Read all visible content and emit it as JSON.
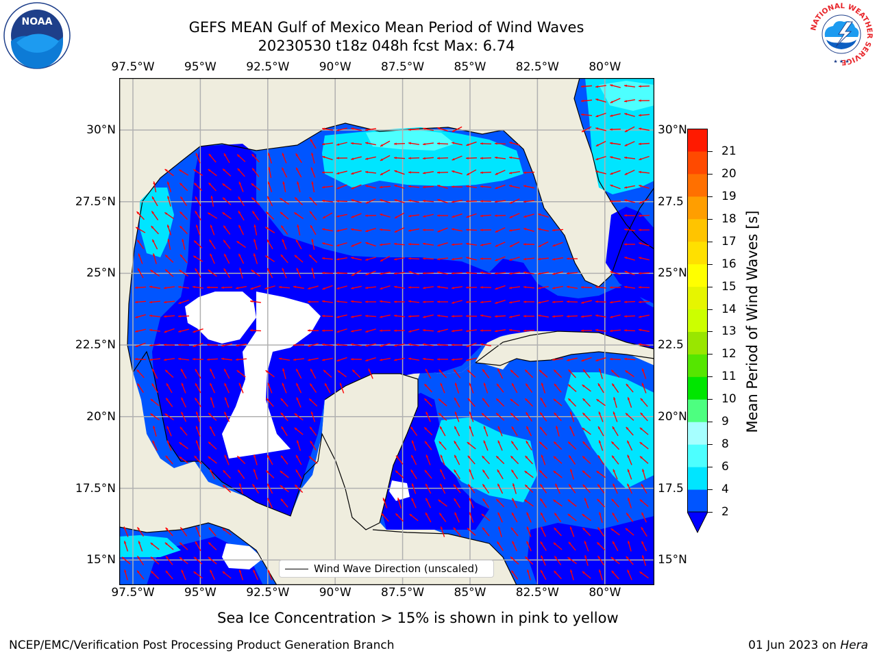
{
  "title": {
    "line1": "GEFS MEAN Gulf of Mexico Mean Period of Wind Waves",
    "line2": "20230530 t18z 048h fcst   Max: 6.74"
  },
  "map": {
    "lon_ticks": [
      "97.5°W",
      "95°W",
      "92.5°W",
      "90°W",
      "87.5°W",
      "85°W",
      "82.5°W",
      "80°W"
    ],
    "lat_ticks_left": [
      "30°N",
      "27.5°N",
      "25°N",
      "22.5°N",
      "20°N",
      "17.5°N",
      "15°N"
    ],
    "lat_ticks_right": [
      "30°N",
      "27.5",
      "25°N",
      "22.5",
      "20°N",
      "17.5",
      "15°N"
    ],
    "legend_text": "Wind Wave Direction (unscaled)",
    "land_color": "#efedde",
    "arrow_color": "#ff0000",
    "grid_color": "#b0b0b0"
  },
  "colorbar": {
    "label": "Mean Period of Wind Waves [s]",
    "ticks": [
      "2",
      "4",
      "6",
      "8",
      "9",
      "10",
      "11",
      "12",
      "13",
      "14",
      "15",
      "16",
      "17",
      "18",
      "19",
      "20",
      "21"
    ],
    "colors": [
      "#0055ff",
      "#00e5ff",
      "#4dffff",
      "#a6ffff",
      "#4dff80",
      "#00e600",
      "#55e600",
      "#99e600",
      "#ccff00",
      "#e6f500",
      "#ffff00",
      "#ffe000",
      "#ffc400",
      "#ff9e00",
      "#ff7000",
      "#ff4a00",
      "#ff1a00"
    ],
    "extend_color": "#0000ff"
  },
  "caption": "Sea Ice Concentration > 15% is shown in pink to yellow",
  "footer": {
    "left": "NCEP/EMC/Verification Post Processing Product Generation Branch",
    "right_prefix": "01 Jun 2023 on ",
    "right_host": "Hera"
  },
  "logos": {
    "noaa_text": "NOAA",
    "nws_ring_text": "NATIONAL WEATHER SERVICE"
  }
}
